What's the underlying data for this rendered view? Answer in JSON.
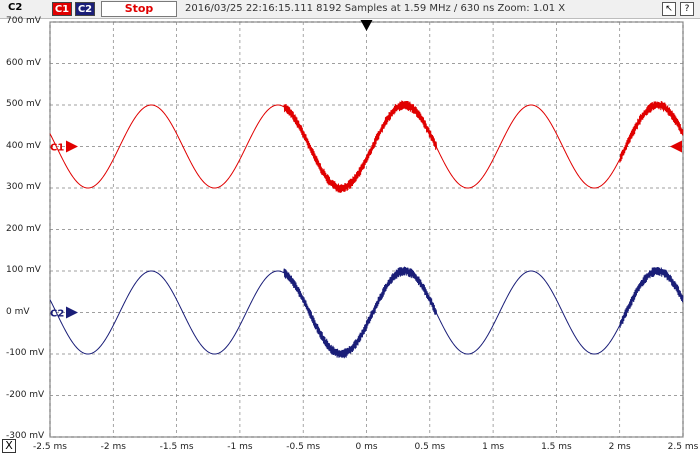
{
  "title": "C2",
  "channel_buttons": [
    "C1",
    "C2"
  ],
  "stop_label": "Stop",
  "status_text": "2016/03/25 22:16:15.111   8192 Samples at 1.59 MHz / 630 ns Zoom: 1.01 X",
  "mini_icons": [
    "pointer-icon",
    "help-icon"
  ],
  "mini_icon_glyphs": [
    "↖",
    "?"
  ],
  "close_label": "X",
  "colors": {
    "ch1": "#e00000",
    "ch2": "#1a1e78",
    "grid": "#808080"
  },
  "chart_data": {
    "type": "line",
    "title": "",
    "xlabel": "",
    "ylabel": "",
    "x_ticks": [
      "-2.5 ms",
      "-2 ms",
      "-1.5 ms",
      "-1 ms",
      "-0.5 ms",
      "0 ms",
      "0.5 ms",
      "1 ms",
      "1.5 ms",
      "2 ms",
      "2.5 ms"
    ],
    "y_ticks": [
      "700 mV",
      "600 mV",
      "500 mV",
      "400 mV",
      "300 mV",
      "200 mV",
      "100 mV",
      "0 mV",
      "-100 mV",
      "-200 mV",
      "-300 mV"
    ],
    "xlim_ms": [
      -2.5,
      2.5
    ],
    "ylim_mV": [
      -300,
      700
    ],
    "grid": true,
    "series": [
      {
        "name": "C1",
        "color": "#e00000",
        "offset_mV": 400,
        "amplitude_mV": 100,
        "period_ms": 1.0,
        "noise_windows_ms": [
          [
            -0.6,
            0.2
          ],
          [
            -0.35,
            0.5
          ],
          [
            2.0,
            2.5
          ]
        ]
      },
      {
        "name": "C2",
        "color": "#1a1e78",
        "offset_mV": 0,
        "amplitude_mV": 100,
        "period_ms": 1.0,
        "noise_windows_ms": [
          [
            -0.6,
            0.2
          ],
          [
            -0.35,
            0.5
          ],
          [
            2.0,
            2.5
          ]
        ]
      }
    ],
    "markers": [
      {
        "label": "C1",
        "level_mV": 400,
        "color": "#e00000"
      },
      {
        "label": "C2",
        "level_mV": 0,
        "color": "#1a1e78"
      }
    ],
    "trigger_time_ms": 0
  }
}
